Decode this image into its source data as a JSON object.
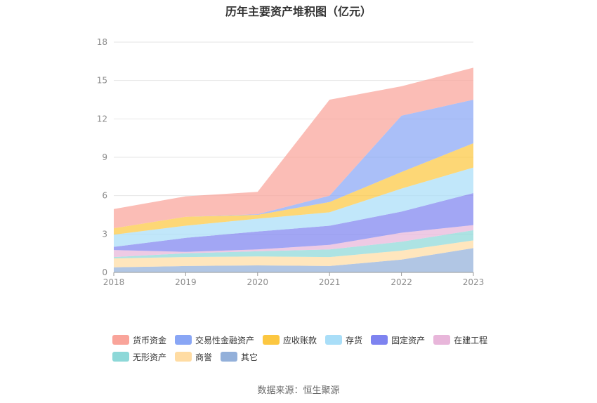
{
  "title": "历年主要资产堆积图（亿元）",
  "source": "数据来源：恒生聚源",
  "chart_data": {
    "type": "area",
    "stacked": true,
    "x": [
      "2018",
      "2019",
      "2020",
      "2021",
      "2022",
      "2023"
    ],
    "yticks": [
      "0",
      "3",
      "6",
      "9",
      "12",
      "15",
      "18"
    ],
    "ylim": [
      0,
      18
    ],
    "grid": true,
    "legend_position": "bottom",
    "series": [
      {
        "name": "其它",
        "color": "#93b0da",
        "values": [
          0.4,
          0.5,
          0.55,
          0.5,
          1.0,
          1.9
        ]
      },
      {
        "name": "商誉",
        "color": "#ffdca3",
        "values": [
          0.7,
          0.7,
          0.7,
          0.7,
          0.7,
          0.6
        ]
      },
      {
        "name": "无形资产",
        "color": "#8dd8d8",
        "values": [
          0.1,
          0.3,
          0.4,
          0.6,
          0.7,
          0.8
        ]
      },
      {
        "name": "在建工程",
        "color": "#e8b6da",
        "values": [
          0.55,
          0.1,
          0.15,
          0.35,
          0.7,
          0.4
        ]
      },
      {
        "name": "固定资产",
        "color": "#7e83f0",
        "values": [
          0.25,
          1.1,
          1.4,
          1.5,
          1.65,
          2.5
        ]
      },
      {
        "name": "存货",
        "color": "#a9def8",
        "values": [
          0.95,
          0.95,
          1.0,
          1.05,
          1.8,
          2.0
        ]
      },
      {
        "name": "应收账款",
        "color": "#fcc741",
        "values": [
          0.5,
          0.7,
          0.3,
          0.8,
          1.3,
          1.9
        ]
      },
      {
        "name": "交易性金融资产",
        "color": "#89a6f5",
        "values": [
          0.0,
          0.0,
          0.05,
          0.5,
          4.4,
          3.4
        ]
      },
      {
        "name": "货币资金",
        "color": "#f9a49a",
        "values": [
          1.5,
          1.6,
          1.75,
          7.5,
          2.3,
          2.5
        ]
      }
    ],
    "legend_order": [
      "货币资金",
      "交易性金融资产",
      "应收账款",
      "存货",
      "固定资产",
      "在建工程",
      "无形资产",
      "商誉",
      "其它"
    ]
  }
}
